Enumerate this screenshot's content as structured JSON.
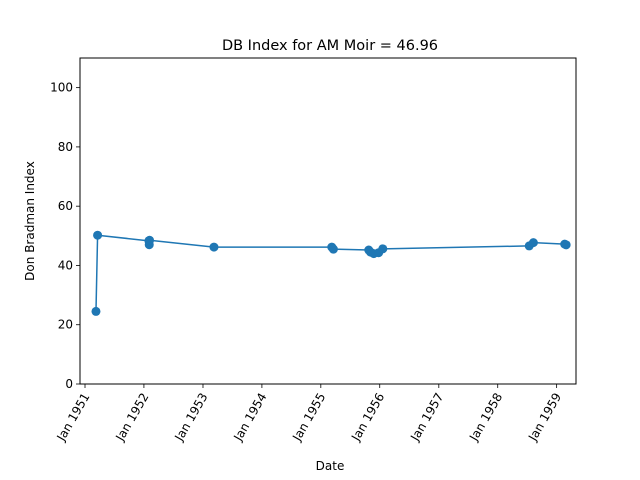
{
  "chart_data": {
    "type": "line",
    "title": "DB Index for AM Moir = 46.96",
    "xlabel": "Date",
    "ylabel": "Don Bradman Index",
    "x_axis": "date",
    "xlim": [
      "1950-12-01",
      "1959-05-01"
    ],
    "ylim": [
      0,
      110
    ],
    "x_ticks": [
      {
        "date": "1951-01-01",
        "label": "Jan 1951"
      },
      {
        "date": "1952-01-01",
        "label": "Jan 1952"
      },
      {
        "date": "1953-01-01",
        "label": "Jan 1953"
      },
      {
        "date": "1954-01-01",
        "label": "Jan 1954"
      },
      {
        "date": "1955-01-01",
        "label": "Jan 1955"
      },
      {
        "date": "1956-01-01",
        "label": "Jan 1956"
      },
      {
        "date": "1957-01-01",
        "label": "Jan 1957"
      },
      {
        "date": "1958-01-01",
        "label": "Jan 1958"
      },
      {
        "date": "1959-01-01",
        "label": "Jan 1959"
      }
    ],
    "y_ticks": [
      0,
      20,
      40,
      60,
      80,
      100
    ],
    "grid": false,
    "legend": "none",
    "marker": "circle",
    "color": "#1f77b4",
    "series": [
      {
        "points": [
          {
            "x": "1951-03-10",
            "y": 24.5
          },
          {
            "x": "1951-03-20",
            "y": 50.2
          },
          {
            "x": "1952-02-01",
            "y": 48.3
          },
          {
            "x": "1952-02-03",
            "y": 47.0
          },
          {
            "x": "1952-02-05",
            "y": 48.5
          },
          {
            "x": "1953-03-10",
            "y": 46.2
          },
          {
            "x": "1955-03-10",
            "y": 46.2
          },
          {
            "x": "1955-03-20",
            "y": 45.5
          },
          {
            "x": "1955-10-25",
            "y": 45.2
          },
          {
            "x": "1955-11-05",
            "y": 44.5
          },
          {
            "x": "1955-11-25",
            "y": 44.0
          },
          {
            "x": "1955-12-25",
            "y": 44.3
          },
          {
            "x": "1956-01-20",
            "y": 45.6
          },
          {
            "x": "1958-07-15",
            "y": 46.6
          },
          {
            "x": "1958-08-10",
            "y": 47.7
          },
          {
            "x": "1959-02-20",
            "y": 47.2
          },
          {
            "x": "1959-03-01",
            "y": 46.96
          }
        ]
      }
    ]
  }
}
